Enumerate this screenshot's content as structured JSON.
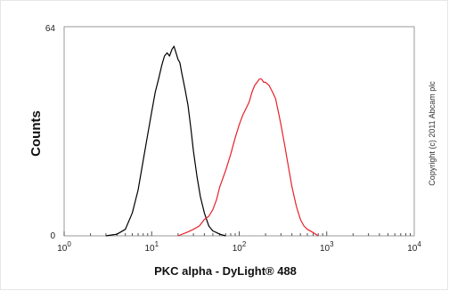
{
  "chart_data": {
    "type": "line",
    "title": "",
    "xlabel": "PKC alpha - DyLight® 488",
    "ylabel": "Counts",
    "x_scale": "log",
    "xlim": [
      1,
      10000
    ],
    "ylim": [
      0,
      64
    ],
    "y_ticks": [
      {
        "value": 0,
        "label": "0"
      },
      {
        "value": 64,
        "label": "64"
      }
    ],
    "x_ticks": [
      {
        "value": 1,
        "base": "10",
        "exp": "0"
      },
      {
        "value": 10,
        "base": "10",
        "exp": "1"
      },
      {
        "value": 100,
        "base": "10",
        "exp": "2"
      },
      {
        "value": 1000,
        "base": "10",
        "exp": "3"
      },
      {
        "value": 10000,
        "base": "10",
        "exp": "4"
      }
    ],
    "grid": false,
    "legend": "none",
    "annotation": "Copyright (c) 2011 Abcam plc",
    "series": [
      {
        "color": "#000000",
        "x": [
          3,
          4,
          5,
          6,
          7,
          8,
          9,
          10,
          11,
          12,
          13,
          14,
          15,
          16,
          17,
          18,
          19,
          20,
          21,
          22,
          24,
          26,
          28,
          30,
          33,
          36,
          40,
          45,
          50,
          55,
          60,
          70
        ],
        "y": [
          0,
          0.5,
          2,
          7,
          14,
          23,
          31,
          38,
          44,
          48,
          52,
          55,
          56,
          55,
          57,
          58,
          56,
          54,
          53,
          50,
          45,
          40,
          33,
          26,
          18,
          12,
          7,
          3,
          1.5,
          1,
          0.5,
          0
        ]
      },
      {
        "color": "#e8202a",
        "x": [
          20,
          25,
          30,
          35,
          40,
          45,
          50,
          55,
          60,
          70,
          80,
          90,
          100,
          110,
          120,
          130,
          140,
          150,
          160,
          170,
          180,
          190,
          200,
          220,
          240,
          260,
          280,
          300,
          330,
          360,
          400,
          450,
          500,
          550,
          600,
          700,
          800
        ],
        "y": [
          0,
          1,
          2,
          3,
          5,
          6,
          8,
          11,
          15,
          20,
          25,
          30,
          34,
          37,
          39,
          41,
          44,
          46,
          47,
          48,
          48,
          47,
          47,
          46,
          44,
          42,
          38,
          34,
          28,
          22,
          15,
          9,
          5,
          3,
          2,
          1,
          0
        ]
      }
    ]
  }
}
